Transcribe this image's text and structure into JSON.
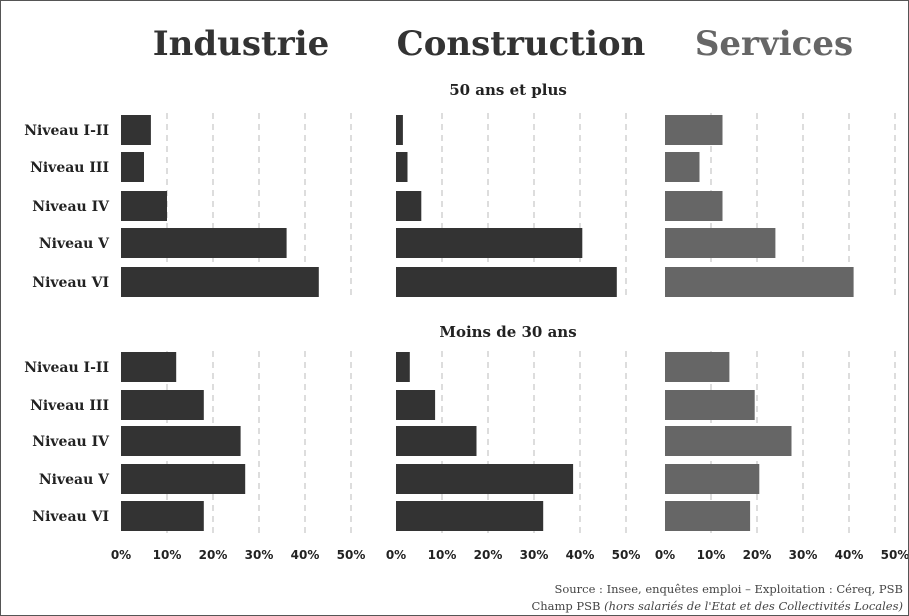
{
  "chart_data": {
    "type": "bar",
    "orientation": "horizontal",
    "panels": [
      "Industrie",
      "Construction",
      "Services"
    ],
    "groups": [
      "50 ans et plus",
      "Moins de 30 ans"
    ],
    "categories": [
      "Niveau I-II",
      "Niveau III",
      "Niveau IV",
      "Niveau V",
      "Niveau VI"
    ],
    "series": [
      {
        "panel": "Industrie",
        "group": "50 ans et plus",
        "values": [
          6.5,
          5,
          10,
          36,
          43
        ]
      },
      {
        "panel": "Construction",
        "group": "50 ans et plus",
        "values": [
          1.5,
          2.5,
          5.5,
          40.5,
          48
        ]
      },
      {
        "panel": "Services",
        "group": "50 ans et plus",
        "values": [
          12.5,
          7.5,
          12.5,
          24,
          41
        ]
      },
      {
        "panel": "Industrie",
        "group": "Moins de 30 ans",
        "values": [
          12,
          18,
          26,
          27,
          18
        ]
      },
      {
        "panel": "Construction",
        "group": "Moins de 30 ans",
        "values": [
          3,
          8.5,
          17.5,
          38.5,
          32
        ]
      },
      {
        "panel": "Services",
        "group": "Moins de 30 ans",
        "values": [
          14,
          19.5,
          27.5,
          20.5,
          18.5
        ]
      }
    ],
    "xlim": [
      0,
      50
    ],
    "xticks": [
      0,
      10,
      20,
      30,
      40,
      50
    ],
    "tick_labels": [
      "0%",
      "10%",
      "20%",
      "30%",
      "40%",
      "50%"
    ],
    "grid": "vertical dashed",
    "colors": {
      "Industrie": "#333333",
      "Construction": "#333333",
      "Services": "#666666",
      "panel_title_dark": "#333333",
      "panel_title_services": "#666666",
      "grid": "#bbbbbb"
    },
    "source_lines": {
      "line1": "Source : Insee, enquêtes emploi – Exploitation : Céreq, PSB",
      "line2_prefix": "Champ PSB ",
      "line2_italic": "(hors salariés de l'Etat et des Collectivités Locales)"
    }
  }
}
